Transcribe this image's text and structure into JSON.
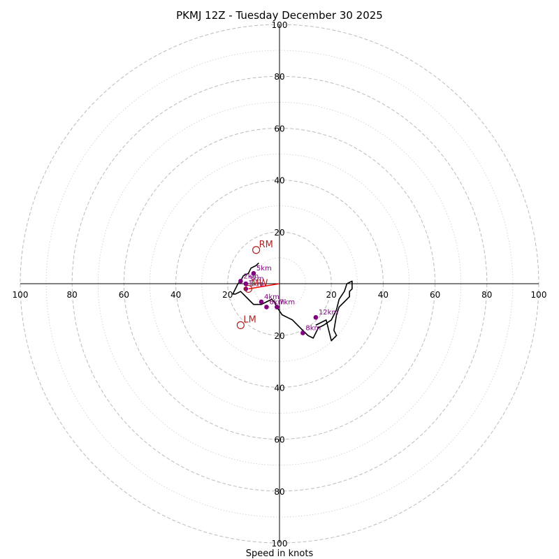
{
  "chart_data": {
    "type": "hodograph",
    "title": "PKMJ 12Z - Tuesday December 30 2025",
    "xlabel": "Speed in knots",
    "max_speed": 100,
    "ring_major_step": 20,
    "ring_minor_step": 10,
    "tick_values": [
      20,
      40,
      60,
      80,
      100
    ],
    "colors": {
      "trace": "#000000",
      "height_marker": "#800080",
      "storm_motion": "#b22222",
      "shear_vector": "#ff0000",
      "ring_major": "#bbbbbb",
      "ring_minor": "#cccccc"
    },
    "hodograph": {
      "u": [
        -8,
        -9,
        -11,
        -12,
        -14,
        -15,
        -16,
        -17,
        -18,
        -17,
        -15,
        -14,
        -13,
        -11,
        -10,
        -9,
        -7,
        -5,
        -3,
        -2,
        -1,
        1,
        3,
        5,
        7,
        9,
        11,
        13,
        14,
        15,
        17,
        20,
        22,
        23,
        25,
        26,
        28,
        28,
        27,
        27,
        25,
        23,
        22,
        21,
        22,
        20,
        18,
        14
      ],
      "v": [
        8,
        7,
        6,
        4,
        3,
        1,
        0,
        -2,
        -4,
        -4,
        -3,
        -4,
        -5,
        -7,
        -8,
        -8,
        -8,
        -7,
        -6,
        -7,
        -9,
        -12,
        -13,
        -14,
        -16,
        -18,
        -20,
        -21,
        -19,
        -17,
        -16,
        -14,
        -10,
        -6,
        -3,
        0,
        1,
        -2,
        -3,
        -5,
        -7,
        -9,
        -12,
        -18,
        -20,
        -22,
        -14,
        -16
      ]
    },
    "height_markers": [
      {
        "label": "1km",
        "u": -13,
        "v": -2
      },
      {
        "label": "2km",
        "u": -15,
        "v": 1
      },
      {
        "label": "3km",
        "u": -13,
        "v": 0
      },
      {
        "label": "4km",
        "u": -7,
        "v": -7
      },
      {
        "label": "5km",
        "u": -10,
        "v": 4
      },
      {
        "label": "6km",
        "u": -5,
        "v": -9
      },
      {
        "label": "7km",
        "u": -1,
        "v": -9
      },
      {
        "label": "8km",
        "u": 9,
        "v": -19
      },
      {
        "label": "12km",
        "u": 14,
        "v": -13
      }
    ],
    "storm_motions": [
      {
        "label": "RM",
        "u": -9,
        "v": 13
      },
      {
        "label": "LM",
        "u": -15,
        "v": -16
      },
      {
        "label": "MW",
        "u": -12,
        "v": -2
      }
    ],
    "shear_vector": {
      "u": -12,
      "v": -2
    }
  }
}
